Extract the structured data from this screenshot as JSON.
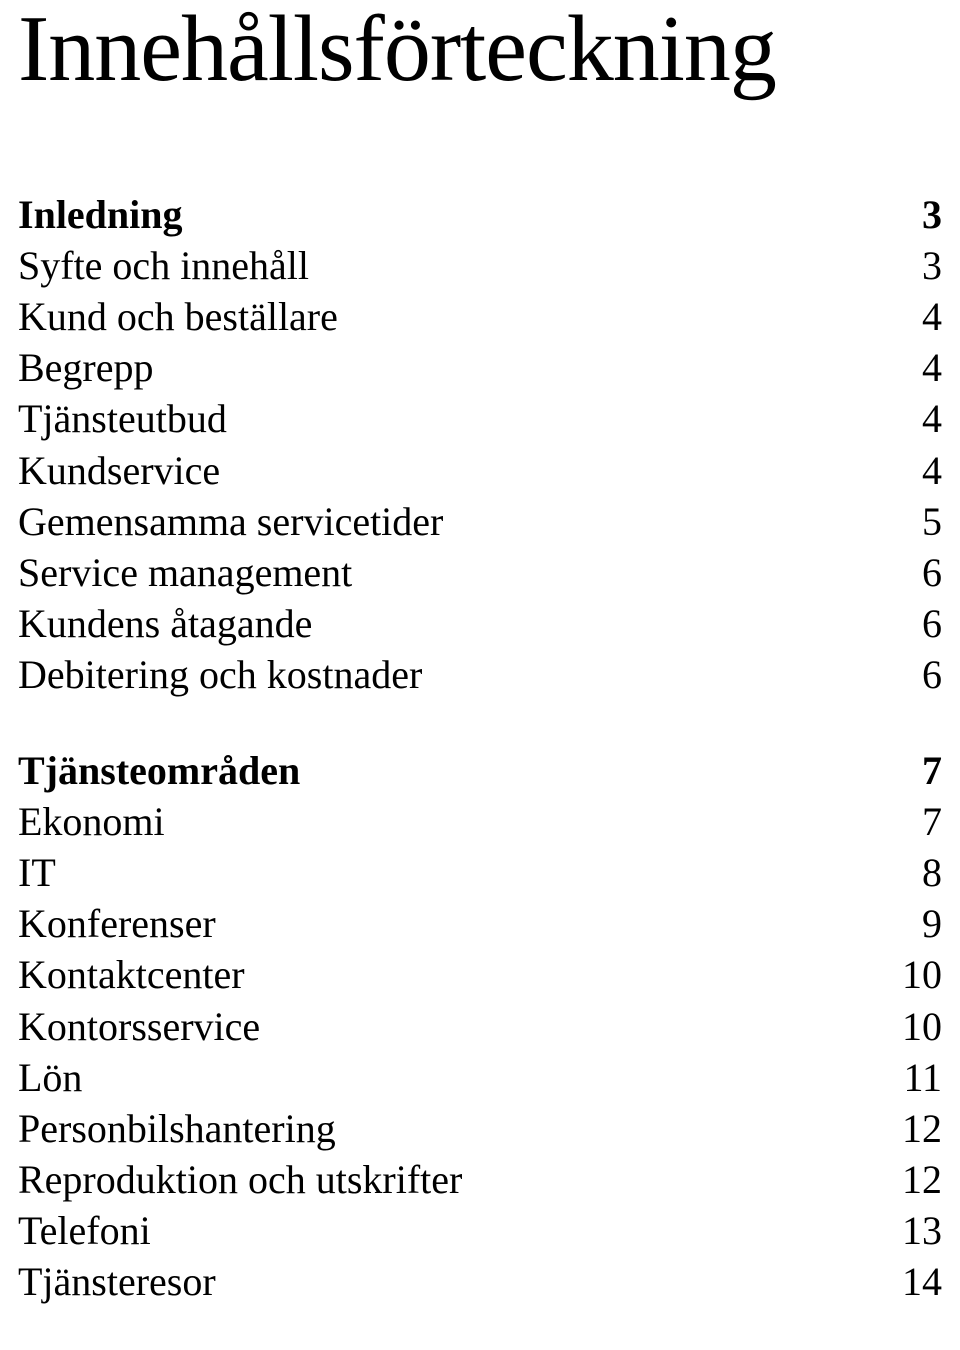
{
  "title": "Innehållsförteckning",
  "font_family": "Times New Roman",
  "colors": {
    "text": "#000000",
    "background": "#ffffff"
  },
  "sizes": {
    "title_pt": 70,
    "body_pt": 30
  },
  "sections": [
    {
      "heading": {
        "label": "Inledning",
        "page": "3"
      },
      "items": [
        {
          "label": "Syfte och innehåll",
          "page": "3"
        },
        {
          "label": "Kund och beställare",
          "page": "4"
        },
        {
          "label": "Begrepp",
          "page": "4"
        },
        {
          "label": "Tjänsteutbud",
          "page": "4"
        },
        {
          "label": "Kundservice",
          "page": "4"
        },
        {
          "label": "Gemensamma servicetider",
          "page": "5"
        },
        {
          "label": "Service management",
          "page": "6"
        },
        {
          "label": "Kundens åtagande",
          "page": "6"
        },
        {
          "label": "Debitering och kostnader",
          "page": "6"
        }
      ]
    },
    {
      "heading": {
        "label": "Tjänsteområden",
        "page": "7"
      },
      "items": [
        {
          "label": "Ekonomi",
          "page": "7"
        },
        {
          "label": "IT",
          "page": "8"
        },
        {
          "label": "Konferenser",
          "page": "9"
        },
        {
          "label": "Kontaktcenter",
          "page": "10"
        },
        {
          "label": "Kontorsservice",
          "page": "10"
        },
        {
          "label": "Lön",
          "page": "11"
        },
        {
          "label": "Personbilshantering",
          "page": "12"
        },
        {
          "label": "Reproduktion och utskrifter",
          "page": "12"
        },
        {
          "label": "Telefoni",
          "page": "13"
        },
        {
          "label": "Tjänsteresor",
          "page": "14"
        }
      ]
    }
  ]
}
